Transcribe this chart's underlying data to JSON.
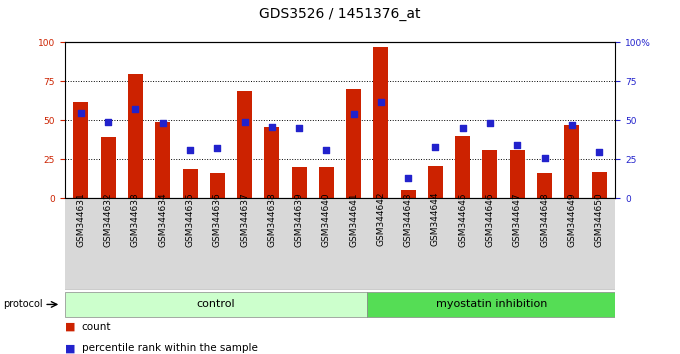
{
  "title": "GDS3526 / 1451376_at",
  "samples": [
    "GSM344631",
    "GSM344632",
    "GSM344633",
    "GSM344634",
    "GSM344635",
    "GSM344636",
    "GSM344637",
    "GSM344638",
    "GSM344639",
    "GSM344640",
    "GSM344641",
    "GSM344642",
    "GSM344643",
    "GSM344644",
    "GSM344645",
    "GSM344646",
    "GSM344647",
    "GSM344648",
    "GSM344649",
    "GSM344650"
  ],
  "counts": [
    62,
    39,
    80,
    49,
    19,
    16,
    69,
    46,
    20,
    20,
    70,
    97,
    5,
    21,
    40,
    31,
    31,
    16,
    47,
    17
  ],
  "percentiles": [
    55,
    49,
    57,
    48,
    31,
    32,
    49,
    46,
    45,
    31,
    54,
    62,
    13,
    33,
    45,
    48,
    34,
    26,
    47,
    30
  ],
  "control_count": 11,
  "groups": [
    "control",
    "myostatin inhibition"
  ],
  "group_colors": [
    "#ccffcc",
    "#55dd55"
  ],
  "tick_bg_color": "#d8d8d8",
  "bar_color": "#cc2200",
  "marker_color": "#2222cc",
  "ylim": [
    0,
    100
  ],
  "yticks_left": [
    0,
    25,
    50,
    75,
    100
  ],
  "yticks_right": [
    0,
    25,
    50,
    75,
    100
  ],
  "grid_lines": [
    25,
    50,
    75
  ],
  "background_color": "#ffffff",
  "legend_count_label": "count",
  "legend_pct_label": "percentile rank within the sample",
  "title_fontsize": 10,
  "tick_fontsize": 6.5,
  "group_fontsize": 8,
  "legend_fontsize": 7.5
}
